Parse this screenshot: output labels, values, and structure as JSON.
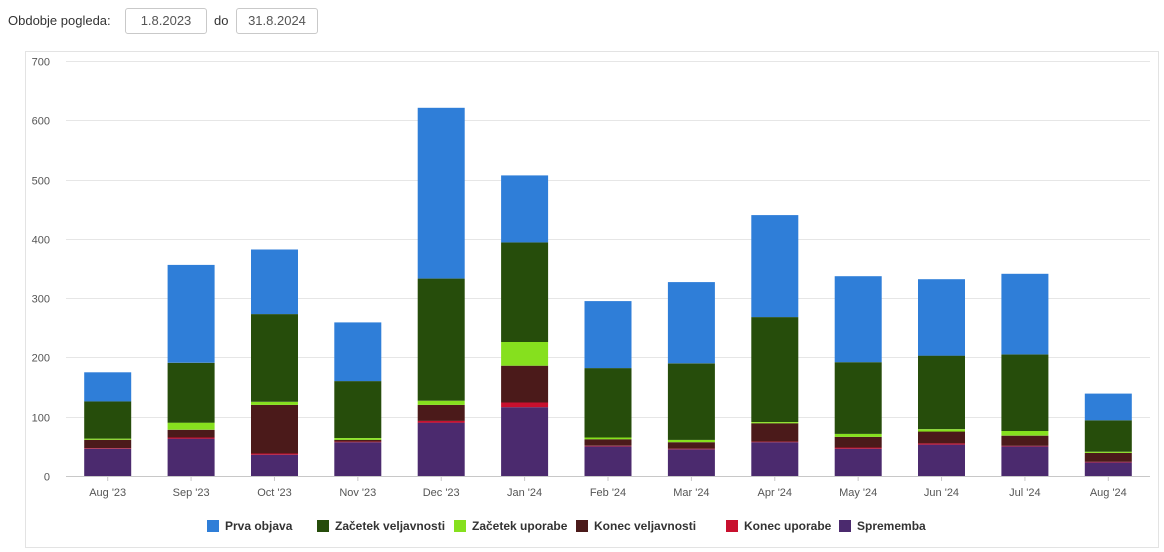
{
  "filter": {
    "label": "Obdobje pogleda:",
    "date_from": "1.8.2023",
    "to_label": "do",
    "date_to": "31.8.2024"
  },
  "chart_data": {
    "type": "bar",
    "stacked": true,
    "grid": true,
    "legend_position": "bottom",
    "ylim": [
      0,
      700
    ],
    "yticks": [
      0,
      100,
      200,
      300,
      400,
      500,
      600,
      700
    ],
    "categories": [
      "Aug '23",
      "Sep '23",
      "Oct '23",
      "Nov '23",
      "Dec '23",
      "Jan '24",
      "Feb '24",
      "Mar '24",
      "Apr '24",
      "May '24",
      "Jun '24",
      "Jul '24",
      "Aug '24"
    ],
    "series": [
      {
        "name": "Sprememba",
        "color": "#4b2a6e",
        "values": [
          46,
          63,
          36,
          57,
          90,
          116,
          50,
          45,
          57,
          46,
          53,
          50,
          23
        ]
      },
      {
        "name": "Konec uporabe",
        "color": "#c8102e",
        "values": [
          1,
          2,
          2,
          1,
          3,
          8,
          1,
          1,
          1,
          2,
          2,
          1,
          1
        ]
      },
      {
        "name": "Konec veljavnosti",
        "color": "#4b1a1a",
        "values": [
          14,
          13,
          82,
          3,
          27,
          62,
          11,
          11,
          31,
          18,
          20,
          17,
          15
        ]
      },
      {
        "name": "Začetek uporabe",
        "color": "#86e01e",
        "values": [
          2,
          12,
          5,
          3,
          7,
          40,
          3,
          4,
          2,
          5,
          4,
          8,
          2
        ]
      },
      {
        "name": "Začetek veljavnosti",
        "color": "#264d0b",
        "values": [
          63,
          101,
          148,
          96,
          206,
          168,
          117,
          129,
          177,
          121,
          124,
          129,
          53
        ]
      },
      {
        "name": "Prva objava",
        "color": "#2f7ed8",
        "values": [
          49,
          165,
          109,
          99,
          288,
          113,
          113,
          137,
          172,
          145,
          129,
          136,
          45
        ]
      }
    ],
    "legend_order": [
      "Prva objava",
      "Začetek veljavnosti",
      "Začetek uporabe",
      "Konec veljavnosti",
      "Konec uporabe",
      "Sprememba"
    ]
  }
}
